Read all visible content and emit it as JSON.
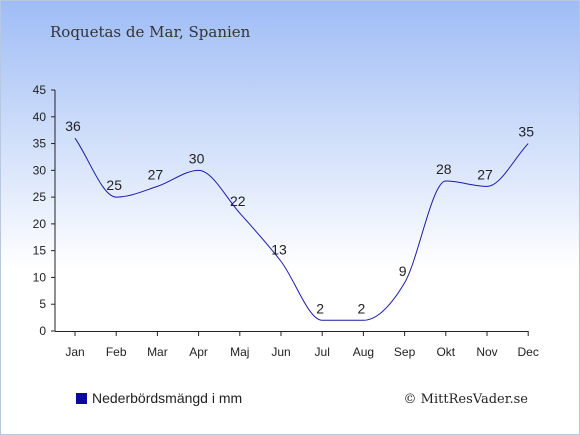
{
  "chart_data": {
    "type": "line",
    "title": "Roquetas de Mar, Spanien",
    "categories": [
      "Jan",
      "Feb",
      "Mar",
      "Apr",
      "Maj",
      "Jun",
      "Jul",
      "Aug",
      "Sep",
      "Okt",
      "Nov",
      "Dec"
    ],
    "series": [
      {
        "name": "Nederbördsmängd i mm",
        "values": [
          36,
          25,
          27,
          30,
          22,
          13,
          2,
          2,
          9,
          28,
          27,
          35
        ]
      }
    ],
    "ylim": [
      0,
      45
    ],
    "yticks": [
      0,
      5,
      10,
      15,
      20,
      25,
      30,
      35,
      40,
      45
    ],
    "grid": false,
    "legend": "bottom-left",
    "xlabel": "",
    "ylabel": ""
  },
  "legend_label": "Nederbördsmängd i mm",
  "credit": "© MittResVader.se",
  "colors": {
    "line": "#1a1aa8",
    "legend_marker": "#0a0aa0",
    "background_top": "#9ebcf5",
    "background_bottom": "#ffffff"
  }
}
